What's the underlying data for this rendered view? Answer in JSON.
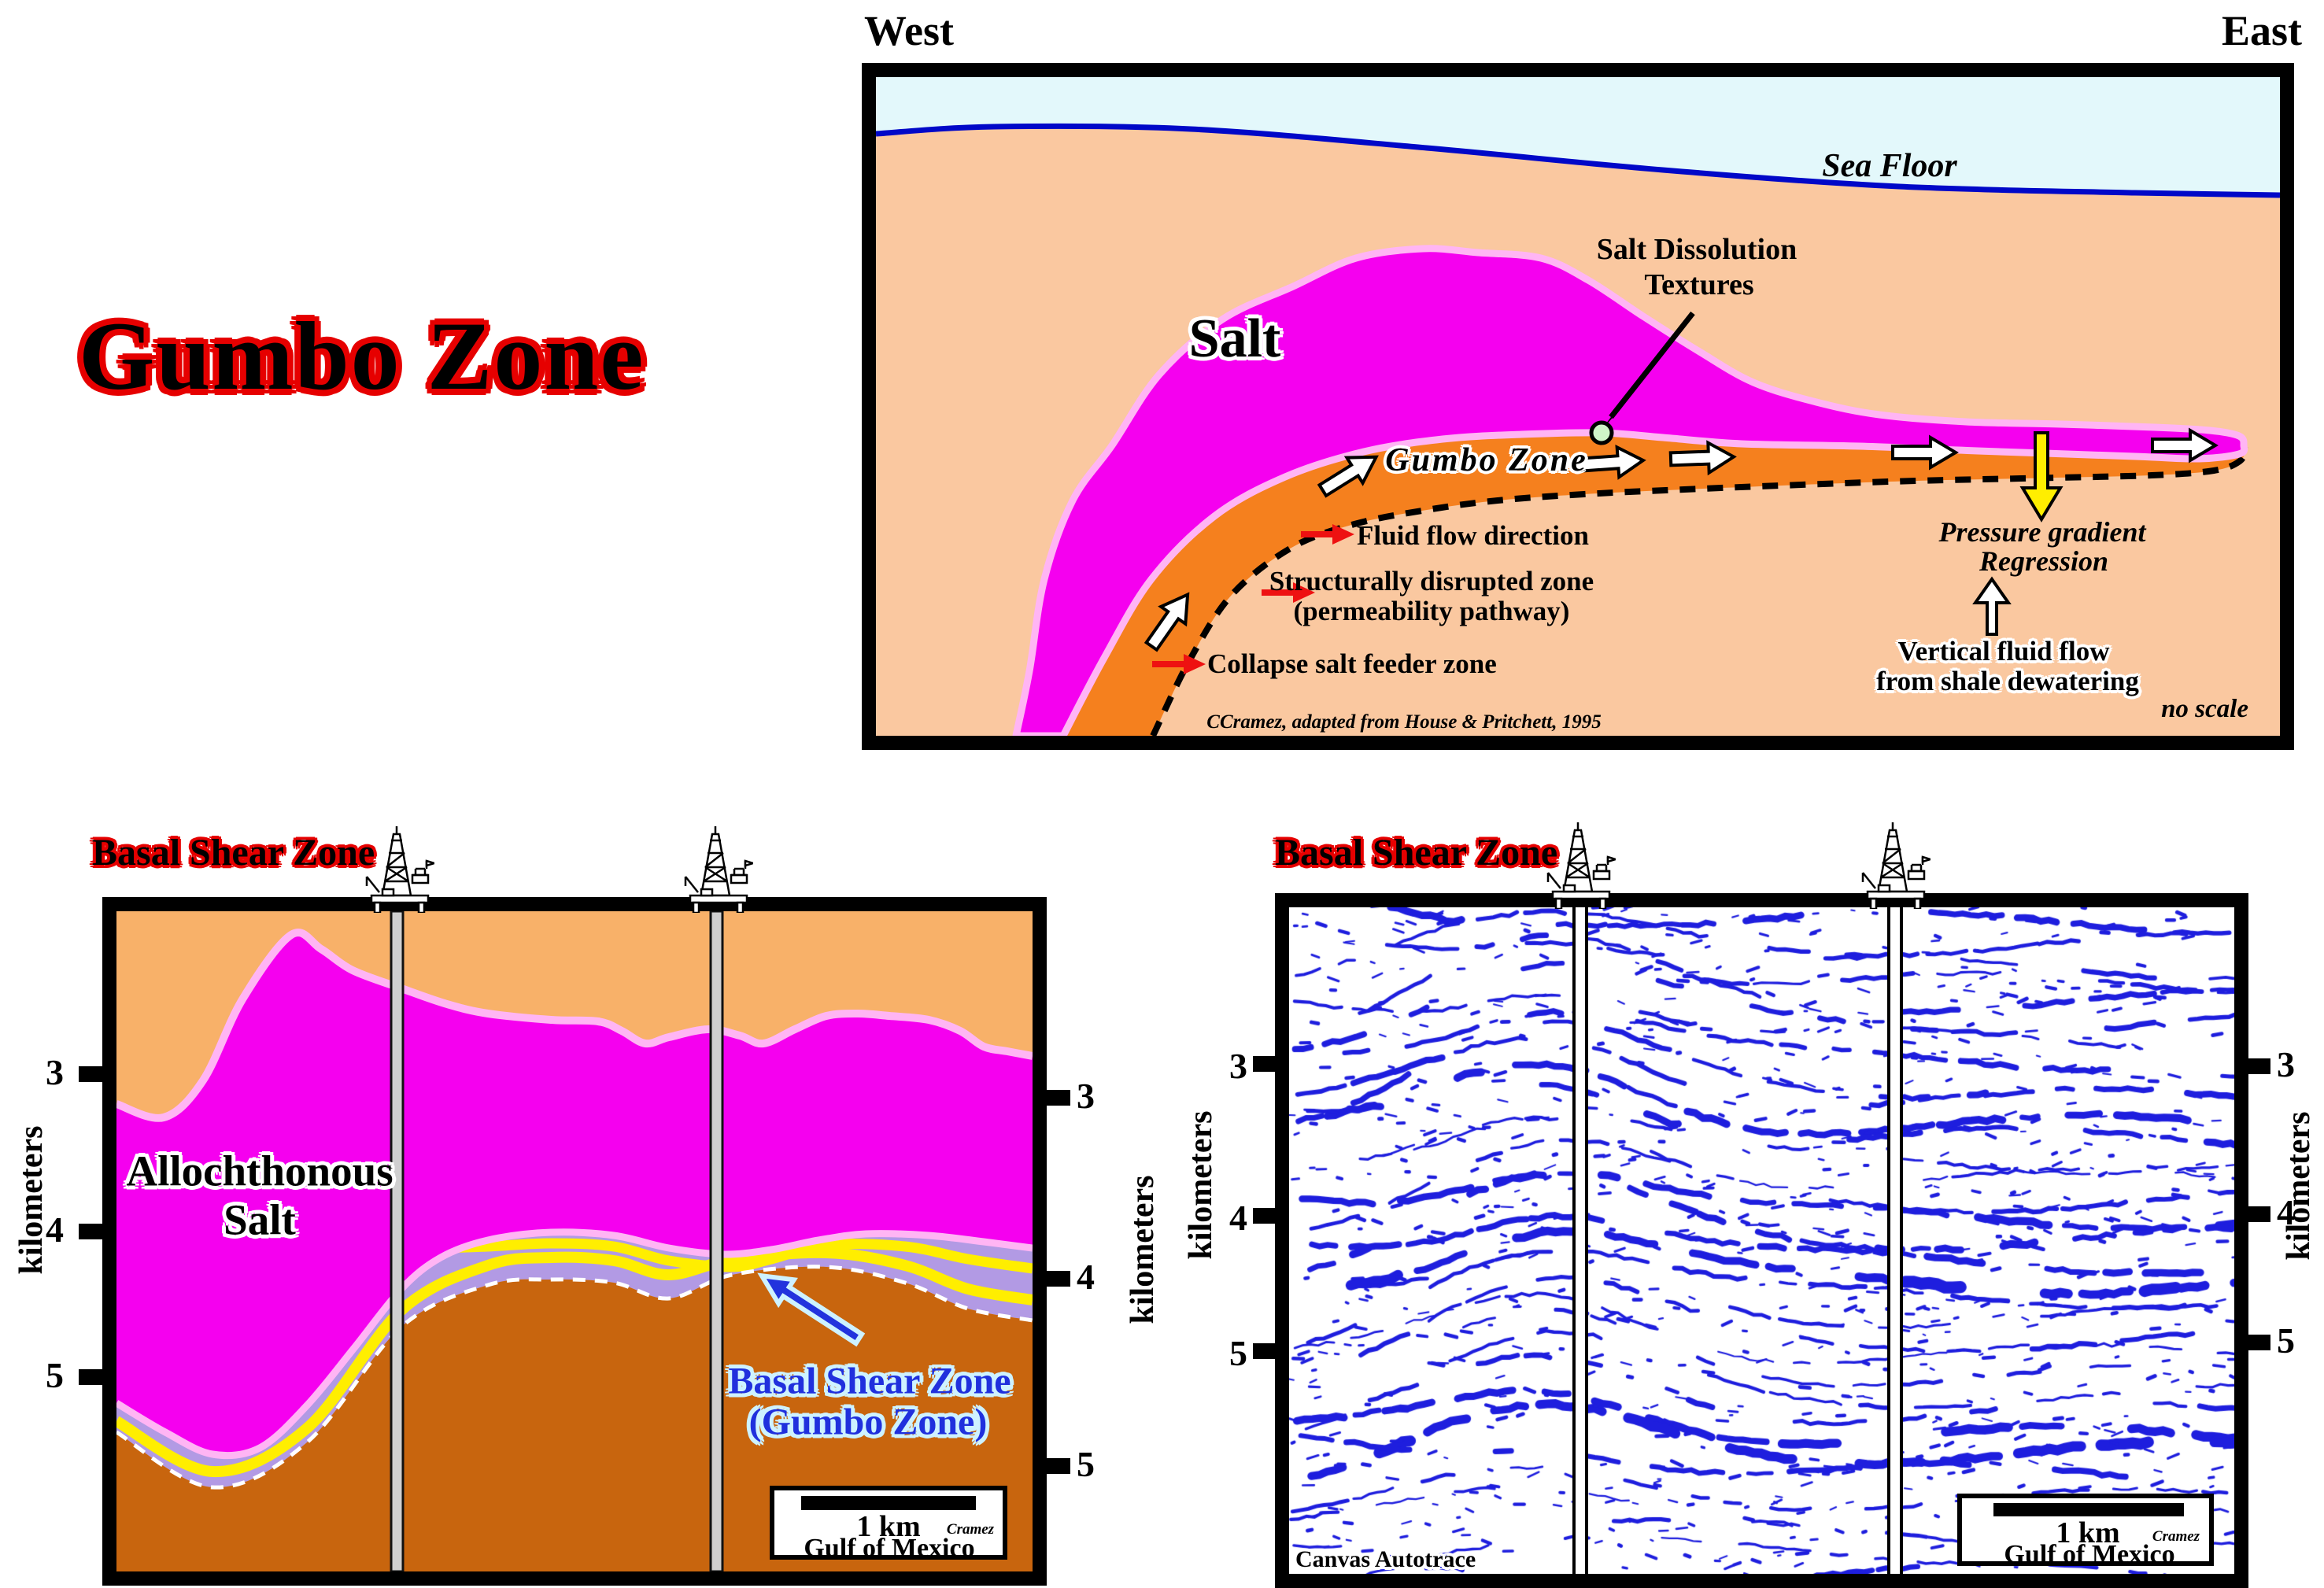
{
  "main_title": "Gumbo Zone",
  "colors": {
    "salt_magenta": "#f500ef",
    "salt_rim_pink": "#ffb5f4",
    "gumbo_orange": "#f5801e",
    "sediment_peach": "#fac8a0",
    "sediment_tan": "#f8b169",
    "subsalt_brown": "#c8650e",
    "shear_lavender": "#b29ae4",
    "stripe_yellow": "#ffee00",
    "sea_cyan": "#e3f8fb",
    "seafloor_blue": "#0008c8",
    "seismic_blue": "#1e1ede",
    "title_outline_red": "#e60000",
    "label_blue": "#2030dd",
    "dissolution_green": "#cff4c8"
  },
  "top_panel": {
    "west": "West",
    "east": "East",
    "sea_floor": "Sea Floor",
    "salt": "Salt",
    "dissolution_line1": "Salt Dissolution",
    "dissolution_line2": "Textures",
    "gumbo_zone": "Gumbo Zone",
    "fluid_flow": "Fluid flow direction",
    "disrupted_line1": "Structurally disrupted zone",
    "disrupted_line2": "(permeability pathway)",
    "collapse": "Collapse salt feeder zone",
    "pressure_line1": "Pressure gradient",
    "pressure_line2": "Regression",
    "vertical_line1": "Vertical fluid flow",
    "vertical_line2": "from shale dewatering",
    "credit": "CCramez, adapted from House & Pritchett, 1995",
    "no_scale": "no scale"
  },
  "left_panel": {
    "title": "Basal Shear Zone",
    "salt_label_line1": "Allochthonous",
    "salt_label_line2": "Salt",
    "bsz_line1": "Basal Shear Zone",
    "bsz_line2": "(Gumbo Zone)",
    "scale_km": "1 km",
    "credit": "Cramez",
    "location": "Gulf of Mexico",
    "axis_label": "kilometers",
    "ticks": [
      "3",
      "4",
      "5"
    ]
  },
  "right_panel": {
    "title": "Basal Shear Zone",
    "watermark": "Canvas Autotrace",
    "scale_km": "1 km",
    "credit": "Cramez",
    "location": "Gulf of Mexico",
    "axis_label": "kilometers",
    "ticks": [
      "3",
      "4",
      "5"
    ]
  }
}
